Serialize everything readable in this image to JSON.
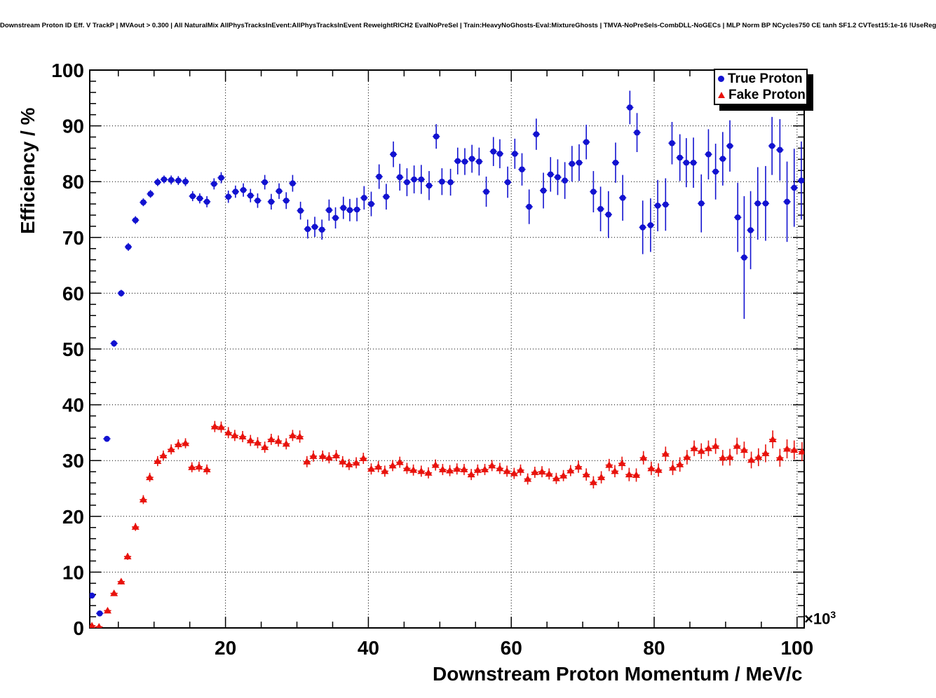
{
  "header": {
    "title": "Downstream Proton ID Eff. V TrackP | MVAout > 0.300 | All NaturalMix AllPhysTracksInEvent:AllPhysTracksInEvent ReweightRICH2 EvalNoPreSel | Train:HeavyNoGhosts-Eval:MixtureGhosts | TMVA-NoPreSels-CombDLL-NoGECs | MLP Norm BP NCycles750 CE tanh SF1.2 CVTest15:1e-16 !UseReg"
  },
  "chart_data": {
    "type": "scatter",
    "title": "Downstream Proton ID Eff. V TrackP",
    "xlabel": "Downstream Proton Momentum / MeV/c",
    "ylabel": "Efficiency / %",
    "exponent": {
      "base": "×10",
      "power": "3"
    },
    "x_units_scale": "momentum values are in units of 1000 MeV/c",
    "xlim": [
      1,
      101
    ],
    "ylim": [
      0,
      100
    ],
    "x_major_ticks": [
      20,
      40,
      60,
      80,
      100
    ],
    "x_minor_step": 5,
    "y_major_ticks": [
      0,
      10,
      20,
      30,
      40,
      50,
      60,
      70,
      80,
      90,
      100
    ],
    "y_minor_step": 2,
    "grid": "dotted at major ticks",
    "legend_position": "top-right",
    "frame_color": "#000000",
    "series": [
      {
        "name": "True Proton",
        "marker": "circle",
        "color": "#1212d0",
        "x_err": 0.5,
        "points": [
          [
            1.3,
            5.8,
            0.4
          ],
          [
            2.4,
            2.6,
            0.4
          ],
          [
            3.4,
            33.9,
            0.5
          ],
          [
            4.4,
            51.0,
            0.6
          ],
          [
            5.4,
            60.0,
            0.6
          ],
          [
            6.4,
            68.3,
            0.7
          ],
          [
            7.4,
            73.1,
            0.7
          ],
          [
            8.5,
            76.3,
            0.7
          ],
          [
            9.5,
            77.8,
            0.7
          ],
          [
            10.5,
            79.9,
            0.7
          ],
          [
            11.4,
            80.4,
            0.7
          ],
          [
            12.4,
            80.3,
            0.8
          ],
          [
            13.4,
            80.2,
            0.8
          ],
          [
            14.4,
            80.0,
            0.8
          ],
          [
            15.4,
            77.4,
            0.9
          ],
          [
            16.4,
            77.0,
            0.9
          ],
          [
            17.4,
            76.4,
            1.0
          ],
          [
            18.4,
            79.6,
            1.0
          ],
          [
            19.4,
            80.7,
            1.0
          ],
          [
            20.4,
            77.3,
            1.1
          ],
          [
            21.4,
            78.2,
            1.1
          ],
          [
            22.5,
            78.5,
            1.2
          ],
          [
            23.5,
            77.5,
            1.2
          ],
          [
            24.5,
            76.6,
            1.3
          ],
          [
            25.5,
            79.9,
            1.3
          ],
          [
            26.4,
            76.4,
            1.4
          ],
          [
            27.5,
            78.3,
            1.4
          ],
          [
            28.5,
            76.6,
            1.5
          ],
          [
            29.4,
            79.7,
            1.5
          ],
          [
            30.5,
            74.8,
            1.6
          ],
          [
            31.5,
            71.5,
            1.7
          ],
          [
            32.5,
            71.9,
            1.8
          ],
          [
            33.5,
            71.4,
            1.8
          ],
          [
            34.5,
            74.9,
            1.9
          ],
          [
            35.4,
            73.5,
            1.9
          ],
          [
            36.5,
            75.3,
            2.0
          ],
          [
            37.4,
            74.9,
            2.0
          ],
          [
            38.4,
            75.0,
            2.1
          ],
          [
            39.4,
            77.1,
            2.1
          ],
          [
            40.4,
            76.0,
            2.2
          ],
          [
            41.5,
            80.9,
            2.2
          ],
          [
            42.5,
            77.3,
            2.3
          ],
          [
            43.5,
            84.9,
            2.3
          ],
          [
            44.4,
            80.8,
            2.4
          ],
          [
            45.4,
            79.9,
            2.5
          ],
          [
            46.4,
            80.4,
            2.5
          ],
          [
            47.4,
            80.4,
            2.6
          ],
          [
            48.5,
            79.3,
            2.6
          ],
          [
            49.5,
            88.1,
            2.2
          ],
          [
            50.3,
            80.0,
            2.4
          ],
          [
            51.5,
            79.9,
            2.4
          ],
          [
            52.5,
            83.7,
            2.4
          ],
          [
            53.5,
            83.6,
            2.4
          ],
          [
            54.5,
            84.1,
            2.5
          ],
          [
            55.5,
            83.6,
            2.5
          ],
          [
            56.5,
            78.2,
            2.7
          ],
          [
            57.5,
            85.4,
            2.6
          ],
          [
            58.4,
            85.0,
            2.6
          ],
          [
            59.5,
            79.9,
            2.8
          ],
          [
            60.5,
            85.0,
            2.7
          ],
          [
            61.5,
            82.2,
            2.9
          ],
          [
            62.5,
            75.5,
            3.1
          ],
          [
            63.5,
            88.5,
            2.8
          ],
          [
            64.5,
            78.4,
            3.2
          ],
          [
            65.5,
            81.3,
            3.1
          ],
          [
            66.5,
            80.8,
            3.2
          ],
          [
            67.5,
            80.2,
            3.3
          ],
          [
            68.5,
            83.2,
            3.2
          ],
          [
            69.5,
            83.4,
            3.3
          ],
          [
            70.5,
            87.1,
            3.1
          ],
          [
            71.5,
            78.2,
            3.7
          ],
          [
            72.5,
            75.1,
            4.0
          ],
          [
            73.6,
            74.1,
            4.2
          ],
          [
            74.6,
            83.4,
            3.6
          ],
          [
            75.6,
            77.1,
            4.1
          ],
          [
            76.6,
            93.3,
            3.0
          ],
          [
            77.6,
            88.8,
            3.5
          ],
          [
            78.4,
            71.8,
            4.8
          ],
          [
            79.5,
            72.2,
            4.8
          ],
          [
            80.5,
            75.7,
            4.6
          ],
          [
            81.6,
            75.9,
            4.7
          ],
          [
            82.5,
            86.9,
            3.8
          ],
          [
            83.6,
            84.3,
            4.2
          ],
          [
            84.5,
            83.4,
            4.4
          ],
          [
            85.5,
            83.4,
            4.5
          ],
          [
            86.6,
            76.1,
            5.2
          ],
          [
            87.6,
            84.9,
            4.5
          ],
          [
            88.6,
            81.8,
            5.0
          ],
          [
            89.6,
            84.1,
            4.8
          ],
          [
            90.6,
            86.4,
            4.6
          ],
          [
            91.7,
            73.6,
            6.2
          ],
          [
            92.6,
            66.4,
            11.0
          ],
          [
            93.5,
            71.3,
            7.0
          ],
          [
            94.5,
            76.1,
            6.5
          ],
          [
            95.6,
            76.1,
            6.7
          ],
          [
            96.5,
            86.4,
            5.2
          ],
          [
            97.6,
            85.7,
            5.5
          ],
          [
            98.6,
            76.4,
            7.2
          ],
          [
            99.6,
            78.9,
            7.0
          ],
          [
            100.6,
            80.2,
            7.0
          ]
        ]
      },
      {
        "name": "Fake Proton",
        "marker": "triangle",
        "color": "#e8120c",
        "x_err": 0.5,
        "points": [
          [
            1.3,
            0.4,
            0.2
          ],
          [
            2.3,
            0.2,
            0.2
          ],
          [
            3.5,
            3.1,
            0.3
          ],
          [
            4.4,
            6.2,
            0.4
          ],
          [
            5.4,
            8.3,
            0.5
          ],
          [
            6.3,
            12.8,
            0.6
          ],
          [
            7.4,
            18.1,
            0.7
          ],
          [
            8.5,
            23.0,
            0.8
          ],
          [
            9.4,
            27.0,
            0.8
          ],
          [
            10.5,
            29.9,
            0.9
          ],
          [
            11.3,
            30.9,
            0.9
          ],
          [
            12.4,
            32.0,
            0.9
          ],
          [
            13.4,
            32.9,
            0.9
          ],
          [
            14.4,
            33.1,
            0.9
          ],
          [
            15.3,
            28.8,
            0.9
          ],
          [
            16.3,
            28.9,
            0.9
          ],
          [
            17.4,
            28.4,
            0.9
          ],
          [
            18.5,
            36.1,
            1.0
          ],
          [
            19.4,
            36.0,
            1.0
          ],
          [
            20.4,
            35.0,
            1.0
          ],
          [
            21.3,
            34.5,
            1.0
          ],
          [
            22.4,
            34.3,
            1.0
          ],
          [
            23.5,
            33.6,
            1.0
          ],
          [
            24.5,
            33.2,
            1.0
          ],
          [
            25.5,
            32.4,
            1.0
          ],
          [
            26.4,
            33.8,
            1.0
          ],
          [
            27.4,
            33.5,
            1.0
          ],
          [
            28.5,
            33.0,
            1.0
          ],
          [
            29.4,
            34.5,
            1.0
          ],
          [
            30.4,
            34.3,
            1.1
          ],
          [
            31.4,
            29.8,
            1.0
          ],
          [
            32.3,
            30.8,
            1.0
          ],
          [
            33.6,
            30.8,
            1.0
          ],
          [
            34.5,
            30.5,
            1.0
          ],
          [
            35.5,
            30.9,
            1.0
          ],
          [
            36.4,
            29.8,
            1.0
          ],
          [
            37.3,
            29.3,
            1.0
          ],
          [
            38.3,
            29.6,
            1.0
          ],
          [
            39.3,
            30.4,
            1.0
          ],
          [
            40.4,
            28.5,
            1.0
          ],
          [
            41.4,
            28.9,
            1.0
          ],
          [
            42.3,
            28.1,
            1.0
          ],
          [
            43.4,
            29.1,
            1.0
          ],
          [
            44.4,
            29.7,
            1.0
          ],
          [
            45.4,
            28.6,
            1.0
          ],
          [
            46.3,
            28.3,
            1.0
          ],
          [
            47.4,
            28.1,
            1.0
          ],
          [
            48.4,
            27.8,
            1.0
          ],
          [
            49.4,
            29.2,
            1.0
          ],
          [
            50.4,
            28.4,
            1.0
          ],
          [
            51.4,
            28.2,
            1.0
          ],
          [
            52.4,
            28.5,
            1.0
          ],
          [
            53.4,
            28.4,
            1.0
          ],
          [
            54.4,
            27.5,
            1.0
          ],
          [
            55.3,
            28.3,
            1.0
          ],
          [
            56.3,
            28.4,
            1.0
          ],
          [
            57.3,
            29.1,
            1.0
          ],
          [
            58.4,
            28.6,
            1.0
          ],
          [
            59.4,
            28.1,
            1.0
          ],
          [
            60.4,
            27.7,
            1.0
          ],
          [
            61.3,
            28.3,
            1.0
          ],
          [
            62.3,
            26.7,
            1.0
          ],
          [
            63.3,
            27.9,
            1.0
          ],
          [
            64.3,
            28.0,
            1.0
          ],
          [
            65.3,
            27.6,
            1.0
          ],
          [
            66.3,
            26.8,
            1.0
          ],
          [
            67.3,
            27.3,
            1.0
          ],
          [
            68.3,
            28.2,
            1.0
          ],
          [
            69.4,
            28.9,
            1.1
          ],
          [
            70.5,
            27.5,
            1.1
          ],
          [
            71.5,
            26.1,
            1.1
          ],
          [
            72.6,
            27.0,
            1.1
          ],
          [
            73.7,
            29.2,
            1.1
          ],
          [
            74.5,
            28.1,
            1.1
          ],
          [
            75.5,
            29.5,
            1.2
          ],
          [
            76.5,
            27.5,
            1.2
          ],
          [
            77.5,
            27.4,
            1.2
          ],
          [
            78.5,
            30.5,
            1.2
          ],
          [
            79.6,
            28.6,
            1.2
          ],
          [
            80.6,
            28.3,
            1.2
          ],
          [
            81.6,
            31.2,
            1.3
          ],
          [
            82.6,
            28.7,
            1.3
          ],
          [
            83.6,
            29.3,
            1.3
          ],
          [
            84.6,
            30.6,
            1.3
          ],
          [
            85.6,
            32.2,
            1.4
          ],
          [
            86.6,
            31.7,
            1.4
          ],
          [
            87.6,
            32.2,
            1.4
          ],
          [
            88.6,
            32.6,
            1.4
          ],
          [
            89.6,
            30.5,
            1.4
          ],
          [
            90.6,
            30.6,
            1.5
          ],
          [
            91.6,
            32.6,
            1.5
          ],
          [
            92.6,
            31.9,
            1.5
          ],
          [
            93.6,
            30.1,
            1.5
          ],
          [
            94.6,
            30.6,
            1.6
          ],
          [
            95.6,
            31.3,
            1.6
          ],
          [
            96.6,
            33.8,
            1.6
          ],
          [
            97.6,
            30.5,
            1.6
          ],
          [
            98.6,
            32.1,
            1.7
          ],
          [
            99.6,
            31.9,
            1.7
          ],
          [
            100.7,
            31.6,
            1.7
          ]
        ]
      }
    ]
  }
}
